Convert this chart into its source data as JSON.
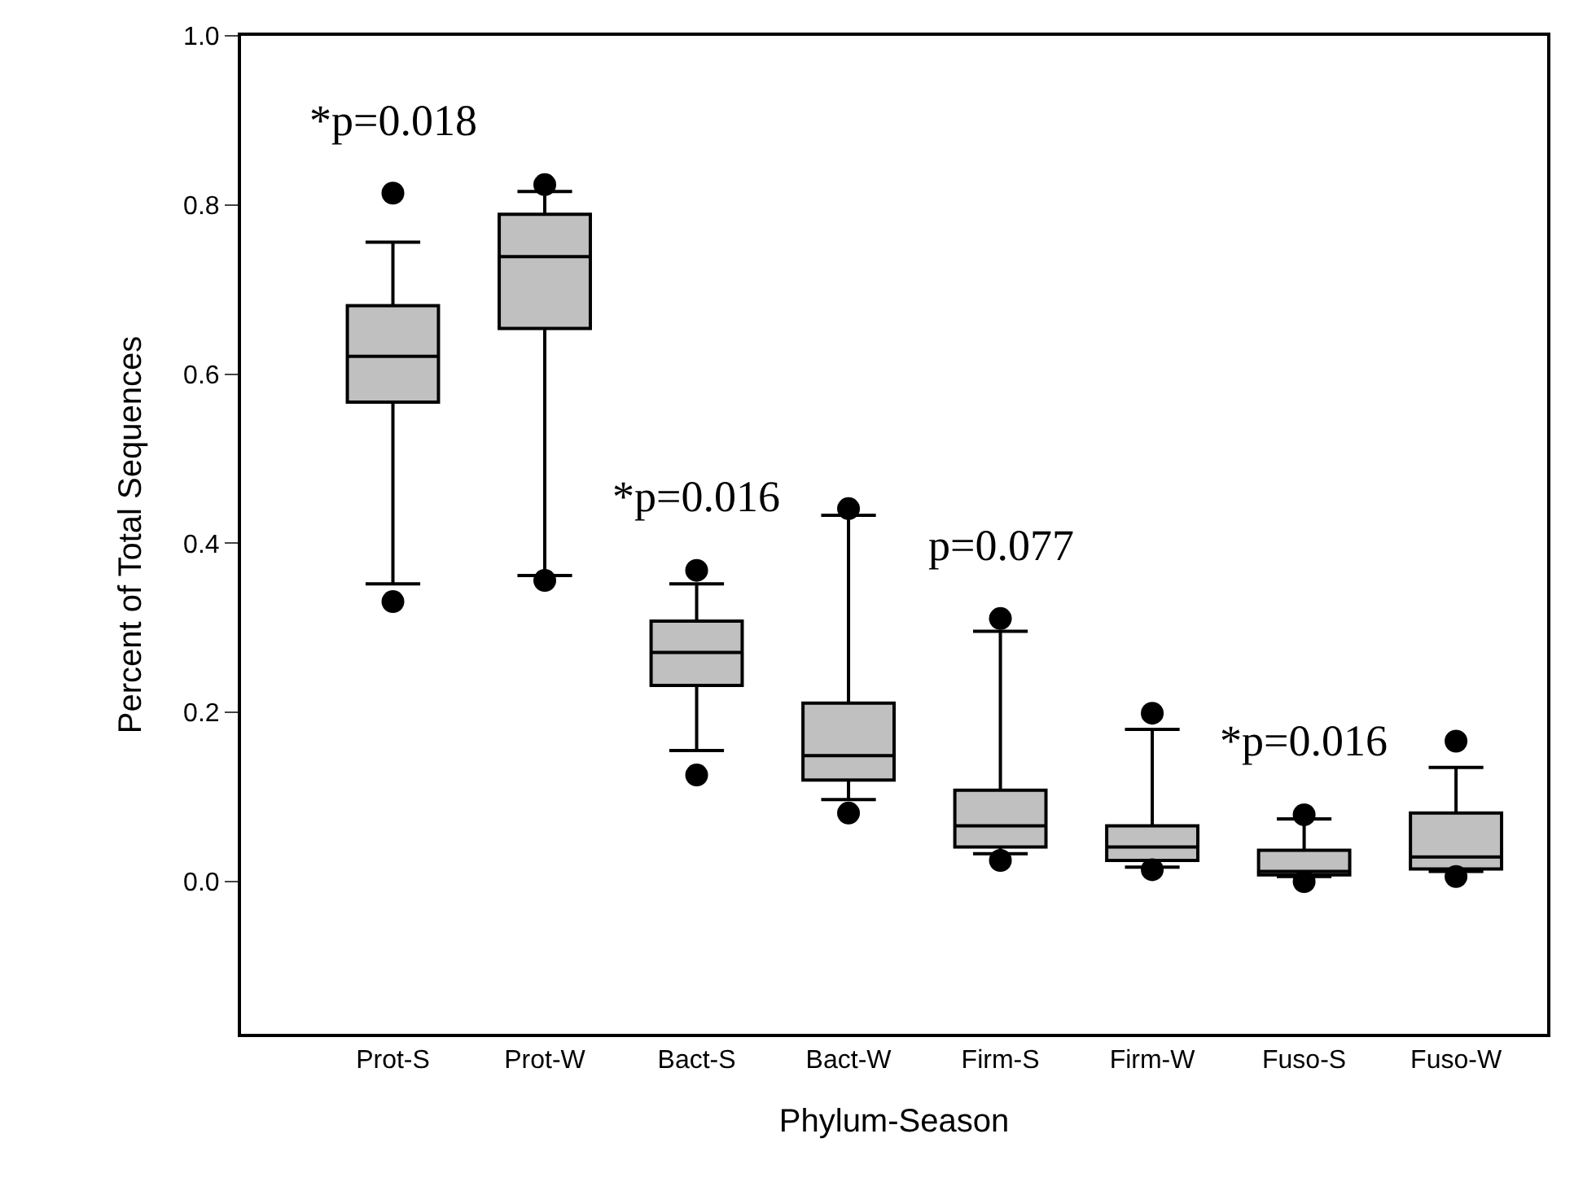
{
  "chart_data": {
    "type": "box",
    "xlabel": "Phylum-Season",
    "ylabel": "Percent of Total Sequences",
    "categories": [
      "Prot-S",
      "Prot-W",
      "Bact-S",
      "Bact-W",
      "Firm-S",
      "Firm-W",
      "Fuso-S",
      "Fuso-W"
    ],
    "boxes": [
      {
        "low": 0.352,
        "q1": 0.567,
        "median": 0.621,
        "q3": 0.681,
        "high": 0.756,
        "outliers": [
          0.814,
          0.331
        ]
      },
      {
        "low": 0.362,
        "q1": 0.654,
        "median": 0.739,
        "q3": 0.789,
        "high": 0.816,
        "outliers": [
          0.824,
          0.356
        ]
      },
      {
        "low": 0.155,
        "q1": 0.232,
        "median": 0.271,
        "q3": 0.308,
        "high": 0.352,
        "outliers": [
          0.368,
          0.126
        ]
      },
      {
        "low": 0.097,
        "q1": 0.12,
        "median": 0.149,
        "q3": 0.211,
        "high": 0.433,
        "outliers": [
          0.441,
          0.081
        ]
      },
      {
        "low": 0.033,
        "q1": 0.041,
        "median": 0.066,
        "q3": 0.108,
        "high": 0.296,
        "outliers": [
          0.311,
          0.025
        ]
      },
      {
        "low": 0.017,
        "q1": 0.025,
        "median": 0.041,
        "q3": 0.066,
        "high": 0.18,
        "outliers": [
          0.199,
          0.014
        ]
      },
      {
        "low": 0.006,
        "q1": 0.008,
        "median": 0.012,
        "q3": 0.037,
        "high": 0.074,
        "outliers": [
          0.079,
          0.0
        ]
      },
      {
        "low": 0.012,
        "q1": 0.015,
        "median": 0.029,
        "q3": 0.081,
        "high": 0.135,
        "outliers": [
          0.166,
          0.006
        ]
      }
    ],
    "color": "#c0c0c0",
    "ylim": [
      -0.18,
      1.0
    ],
    "yticks": [
      {
        "value": 0,
        "label": "0.0"
      },
      0.2,
      0.4,
      0.6,
      0.8,
      {
        "value": 1,
        "label": "1.0"
      }
    ],
    "marker": "circle",
    "annotations": [
      "*p=0.018",
      "*p=0.016",
      "p=0.077",
      "*p=0.016"
    ]
  }
}
